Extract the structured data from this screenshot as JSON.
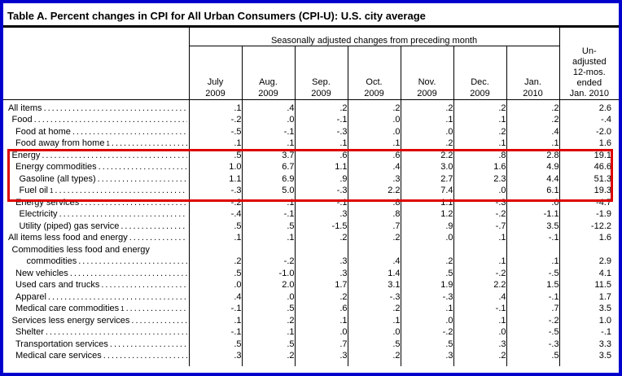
{
  "title": "Table A. Percent changes in CPI for All Urban Consumers (CPI-U): U.S. city average",
  "header": {
    "group": "Seasonally adjusted changes from preceding month",
    "unadjusted": "Un-\nadjusted\n12-mos.\nended\nJan. 2010",
    "months": [
      "July\n2009",
      "Aug.\n2009",
      "Sep.\n2009",
      "Oct.\n2009",
      "Nov.\n2009",
      "Dec.\n2009",
      "Jan.\n2010"
    ]
  },
  "colors": {
    "frame": "#0000cc",
    "highlight": "#dd0000"
  },
  "rows": [
    {
      "label": "All items",
      "indent": 0,
      "highlight": false,
      "values": [
        ".1",
        ".4",
        ".2",
        ".2",
        ".2",
        ".2",
        ".2",
        "2.6"
      ]
    },
    {
      "label": "Food",
      "indent": 1,
      "highlight": false,
      "values": [
        "-.2",
        ".0",
        "-.1",
        ".0",
        ".1",
        ".1",
        ".2",
        "-.4"
      ]
    },
    {
      "label": "Food at home",
      "indent": 2,
      "highlight": false,
      "values": [
        "-.5",
        "-.1",
        "-.3",
        ".0",
        ".0",
        ".2",
        ".4",
        "-2.0"
      ]
    },
    {
      "label": "Food away from home",
      "sup": "1",
      "indent": 2,
      "highlight": false,
      "values": [
        ".1",
        ".1",
        ".1",
        ".1",
        ".2",
        ".1",
        ".1",
        "1.6"
      ]
    },
    {
      "label": "Energy",
      "indent": 1,
      "highlight": true,
      "values": [
        ".5",
        "3.7",
        ".6",
        ".6",
        "2.2",
        ".8",
        "2.8",
        "19.1"
      ]
    },
    {
      "label": "Energy commodities",
      "indent": 2,
      "highlight": true,
      "values": [
        "1.0",
        "6.7",
        "1.1",
        ".4",
        "3.0",
        "1.6",
        "4.9",
        "46.6"
      ]
    },
    {
      "label": "Gasoline (all types)",
      "indent": 3,
      "highlight": true,
      "values": [
        "1.1",
        "6.9",
        ".9",
        ".3",
        "2.7",
        "2.3",
        "4.4",
        "51.3"
      ]
    },
    {
      "label": "Fuel oil",
      "sup": "1",
      "indent": 3,
      "highlight": true,
      "values": [
        "-.3",
        "5.0",
        "-.3",
        "2.2",
        "7.4",
        ".0",
        "6.1",
        "19.3"
      ]
    },
    {
      "label": "Energy services",
      "indent": 2,
      "highlight": false,
      "values": [
        "-.2",
        ".1",
        "-.1",
        ".8",
        "1.1",
        "-.3",
        ".0",
        "-4.7"
      ]
    },
    {
      "label": "Electricity",
      "indent": 3,
      "highlight": false,
      "values": [
        "-.4",
        "-.1",
        ".3",
        ".8",
        "1.2",
        "-.2",
        "-1.1",
        "-1.9"
      ]
    },
    {
      "label": "Utility (piped) gas service",
      "indent": 3,
      "highlight": false,
      "values": [
        ".5",
        ".5",
        "-1.5",
        ".7",
        ".9",
        "-.7",
        "3.5",
        "-12.2"
      ]
    },
    {
      "label": "All items less food and energy",
      "indent": 0,
      "highlight": false,
      "values": [
        ".1",
        ".1",
        ".2",
        ".2",
        ".0",
        ".1",
        "-.1",
        "1.6"
      ]
    },
    {
      "label": "Commodities less food and energy",
      "label2": "commodities",
      "indent": 1,
      "highlight": false,
      "values": [
        ".2",
        "-.2",
        ".3",
        ".4",
        ".2",
        ".1",
        ".1",
        "2.9"
      ]
    },
    {
      "label": "New vehicles",
      "indent": 2,
      "highlight": false,
      "values": [
        ".5",
        "-1.0",
        ".3",
        "1.4",
        ".5",
        "-.2",
        "-.5",
        "4.1"
      ]
    },
    {
      "label": "Used cars and trucks",
      "indent": 2,
      "highlight": false,
      "values": [
        ".0",
        "2.0",
        "1.7",
        "3.1",
        "1.9",
        "2.2",
        "1.5",
        "11.5"
      ]
    },
    {
      "label": "Apparel",
      "indent": 2,
      "highlight": false,
      "values": [
        ".4",
        ".0",
        ".2",
        "-.3",
        "-.3",
        ".4",
        "-.1",
        "1.7"
      ]
    },
    {
      "label": "Medical care commodities",
      "sup": "1",
      "indent": 2,
      "highlight": false,
      "values": [
        "-.1",
        ".5",
        ".6",
        ".2",
        ".1",
        "-.1",
        ".7",
        "3.5"
      ]
    },
    {
      "label": "Services less energy services",
      "indent": 1,
      "highlight": false,
      "values": [
        ".1",
        ".2",
        ".1",
        ".1",
        ".0",
        ".1",
        "-.2",
        "1.0"
      ]
    },
    {
      "label": "Shelter",
      "indent": 2,
      "highlight": false,
      "values": [
        "-.1",
        ".1",
        ".0",
        ".0",
        "-.2",
        ".0",
        "-.5",
        "-.1"
      ]
    },
    {
      "label": "Transportation services",
      "indent": 2,
      "highlight": false,
      "values": [
        ".5",
        ".5",
        ".7",
        ".5",
        ".5",
        ".3",
        "-.3",
        "3.3"
      ]
    },
    {
      "label": "Medical care services",
      "indent": 2,
      "highlight": false,
      "values": [
        ".3",
        ".2",
        ".3",
        ".2",
        ".3",
        ".2",
        ".5",
        "3.5"
      ]
    }
  ]
}
